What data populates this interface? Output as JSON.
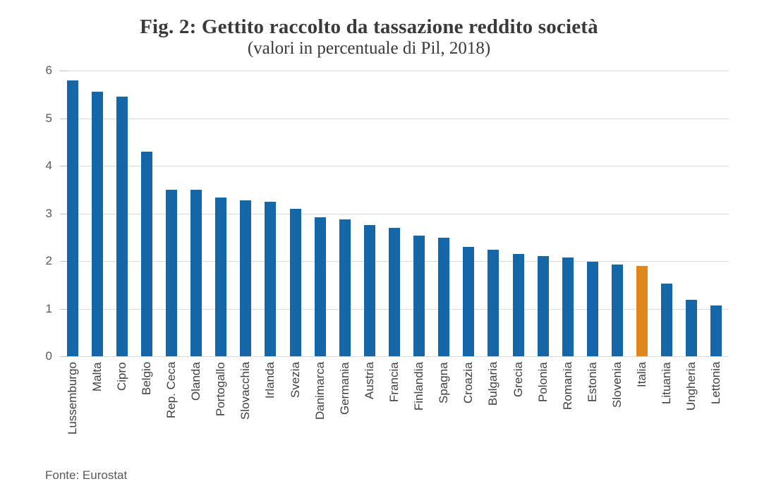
{
  "title": "Fig. 2: Gettito raccolto da tassazione reddito società",
  "subtitle": "(valori in percentuale di Pil, 2018)",
  "footer": {
    "source_label": "Fonte: Eurostat"
  },
  "colors": {
    "bar_default": "#1567a8",
    "bar_highlight": "#e0861c",
    "gridline": "#d9d9d9",
    "tick": "#bfbfbf",
    "y_axis_text": "#595959",
    "x_axis_text": "#404040",
    "title_text": "#3a3a3a"
  },
  "chart_data": {
    "type": "bar",
    "title": "Fig. 2: Gettito raccolto da tassazione reddito società",
    "subtitle": "(valori in percentuale di Pil, 2018)",
    "xlabel": "",
    "ylabel": "",
    "ylim": [
      0,
      6
    ],
    "yticks": [
      0,
      1,
      2,
      3,
      4,
      5,
      6
    ],
    "grid": true,
    "legend": false,
    "highlight_category": "Italia",
    "categories": [
      "Lussemburgo",
      "Malta",
      "Cipro",
      "Belgio",
      "Rep. Ceca",
      "Olanda",
      "Portogallo",
      "Slovacchia",
      "Irlanda",
      "Svezia",
      "Danimarca",
      "Germania",
      "Austria",
      "Francia",
      "Finlandia",
      "Spagna",
      "Croazia",
      "Bulgaria",
      "Grecia",
      "Polonia",
      "Romania",
      "Estonia",
      "Slovenia",
      "Italia",
      "Lituania",
      "Ungheria",
      "Lettonia"
    ],
    "values": [
      5.8,
      5.55,
      5.45,
      4.3,
      3.5,
      3.5,
      3.33,
      3.27,
      3.24,
      3.1,
      2.92,
      2.87,
      2.76,
      2.7,
      2.54,
      2.49,
      2.3,
      2.23,
      2.15,
      2.1,
      2.07,
      1.98,
      1.93,
      1.89,
      1.52,
      1.19,
      1.06
    ]
  }
}
